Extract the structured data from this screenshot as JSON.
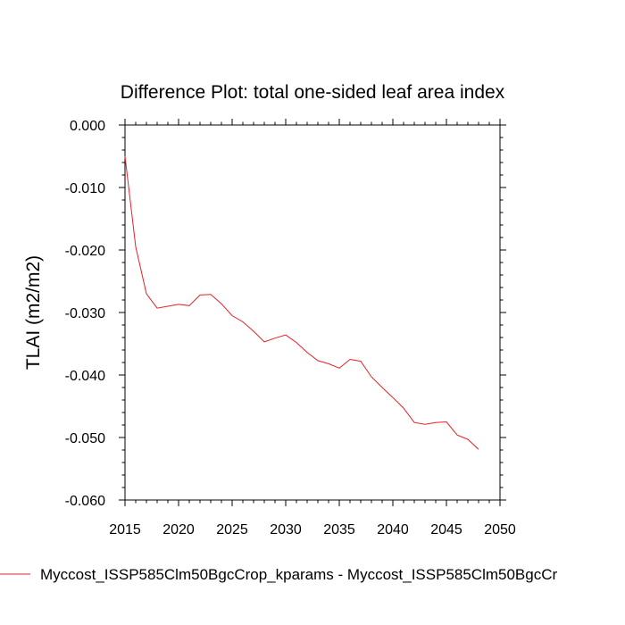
{
  "chart_data": {
    "type": "line",
    "title": "Difference Plot: total one-sided leaf area index",
    "xlabel": "",
    "ylabel": "TLAI  (m2/m2)",
    "xlim": [
      2015,
      2050
    ],
    "ylim": [
      -0.06,
      0.0
    ],
    "x_ticks": [
      2015,
      2020,
      2025,
      2030,
      2035,
      2040,
      2045,
      2050
    ],
    "x_tick_labels": [
      "2015",
      "2020",
      "2025",
      "2030",
      "2035",
      "2040",
      "2045",
      "2050"
    ],
    "y_ticks": [
      0.0,
      -0.01,
      -0.02,
      -0.03,
      -0.04,
      -0.05,
      -0.06
    ],
    "y_tick_labels": [
      "0.000",
      "-0.010",
      "-0.020",
      "-0.030",
      "-0.040",
      "-0.050",
      "-0.060"
    ],
    "grid": false,
    "legend_position": "bottom",
    "series": [
      {
        "name": "Myccost_ISSP585Clm50BgcCrop_kparams - Myccost_ISSP585Clm50BgcCr",
        "color": "#e8202a",
        "x": [
          2015,
          2016,
          2017,
          2018,
          2019,
          2020,
          2021,
          2022,
          2023,
          2024,
          2025,
          2026,
          2027,
          2028,
          2029,
          2030,
          2031,
          2032,
          2033,
          2034,
          2035,
          2036,
          2037,
          2038,
          2039,
          2040,
          2041,
          2042,
          2043,
          2044,
          2045,
          2046,
          2047,
          2048
        ],
        "values": [
          -0.005,
          -0.0195,
          -0.027,
          -0.0293,
          -0.029,
          -0.0287,
          -0.0289,
          -0.0272,
          -0.0271,
          -0.0286,
          -0.0305,
          -0.0315,
          -0.033,
          -0.0347,
          -0.0341,
          -0.0336,
          -0.0348,
          -0.0364,
          -0.0377,
          -0.0382,
          -0.0389,
          -0.0375,
          -0.0378,
          -0.0403,
          -0.042,
          -0.0436,
          -0.0453,
          -0.0476,
          -0.0479,
          -0.0476,
          -0.0475,
          -0.0496,
          -0.0503,
          -0.0519
        ]
      }
    ]
  }
}
